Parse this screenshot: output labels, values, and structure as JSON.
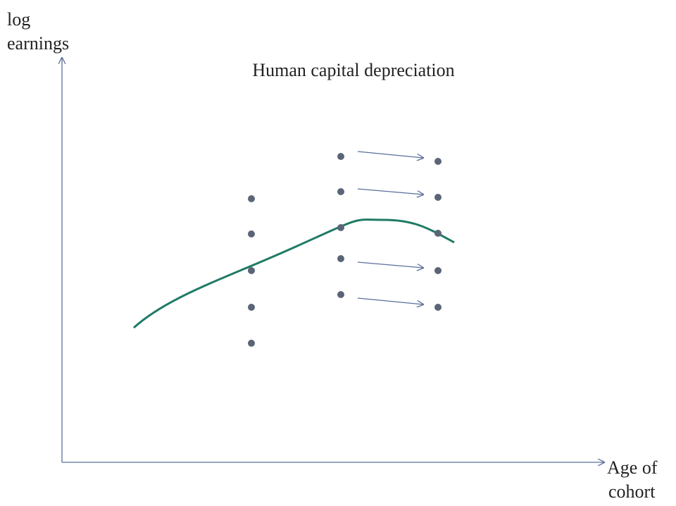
{
  "title": "Human capital depreciation",
  "y_axis_label": [
    "log",
    "earnings"
  ],
  "x_axis_label": [
    "Age of",
    "cohort"
  ]
}
